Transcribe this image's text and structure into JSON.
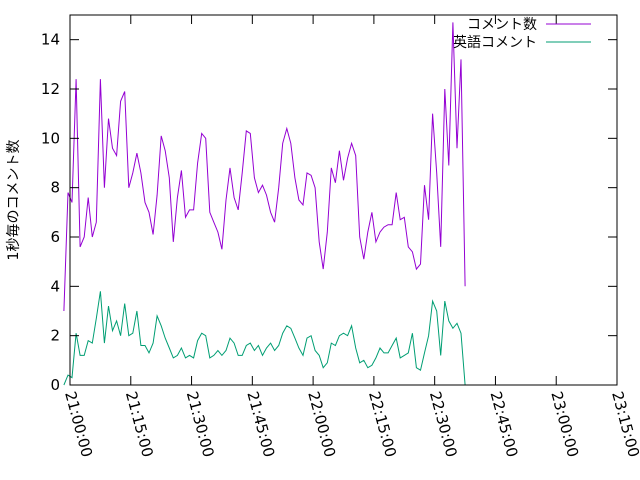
{
  "chart_data": {
    "type": "line",
    "ylabel": "1秒毎のコメント数",
    "xlabel": "",
    "ylim": [
      0,
      15
    ],
    "y_ticks": [
      0,
      2,
      4,
      6,
      8,
      10,
      12,
      14
    ],
    "y_tick_labels": [
      "0",
      "2",
      "4",
      "6",
      "8",
      "10",
      "12",
      "14"
    ],
    "x_tick_labels": [
      "21:00:00",
      "21:15:00",
      "21:30:00",
      "21:45:00",
      "22:00:00",
      "22:15:00",
      "22:30:00",
      "22:45:00",
      "23:00:00",
      "23:15:00"
    ],
    "xlim": [
      "21:00:00",
      "23:15:00"
    ],
    "grid": false,
    "legend_position": "top-right",
    "series": [
      {
        "name": "コメント数",
        "color": "#9400d3",
        "points": [
          [
            "20:58:30",
            3.0
          ],
          [
            "20:59:30",
            7.8
          ],
          [
            "21:00:30",
            7.4
          ],
          [
            "21:01:30",
            12.4
          ],
          [
            "21:02:30",
            5.6
          ],
          [
            "21:03:30",
            6.0
          ],
          [
            "21:04:30",
            7.6
          ],
          [
            "21:05:30",
            6.0
          ],
          [
            "21:06:30",
            6.6
          ],
          [
            "21:07:30",
            12.4
          ],
          [
            "21:08:30",
            8.0
          ],
          [
            "21:09:30",
            10.8
          ],
          [
            "21:10:30",
            9.6
          ],
          [
            "21:11:30",
            9.3
          ],
          [
            "21:12:30",
            11.5
          ],
          [
            "21:13:30",
            11.9
          ],
          [
            "21:14:30",
            8.0
          ],
          [
            "21:15:30",
            8.6
          ],
          [
            "21:16:30",
            9.4
          ],
          [
            "21:17:30",
            8.6
          ],
          [
            "21:18:30",
            7.4
          ],
          [
            "21:19:30",
            7.0
          ],
          [
            "21:20:30",
            6.1
          ],
          [
            "21:21:30",
            7.7
          ],
          [
            "21:22:30",
            10.1
          ],
          [
            "21:23:30",
            9.5
          ],
          [
            "21:24:30",
            8.4
          ],
          [
            "21:25:30",
            5.8
          ],
          [
            "21:26:30",
            7.6
          ],
          [
            "21:27:30",
            8.7
          ],
          [
            "21:28:30",
            6.8
          ],
          [
            "21:29:30",
            7.1
          ],
          [
            "21:30:30",
            7.1
          ],
          [
            "21:31:30",
            9.0
          ],
          [
            "21:32:30",
            10.2
          ],
          [
            "21:33:30",
            10.0
          ],
          [
            "21:34:30",
            7.0
          ],
          [
            "21:35:30",
            6.6
          ],
          [
            "21:36:30",
            6.2
          ],
          [
            "21:37:30",
            5.5
          ],
          [
            "21:38:30",
            7.5
          ],
          [
            "21:39:30",
            8.8
          ],
          [
            "21:40:30",
            7.6
          ],
          [
            "21:41:30",
            7.1
          ],
          [
            "21:42:30",
            8.6
          ],
          [
            "21:43:30",
            10.3
          ],
          [
            "21:44:30",
            10.2
          ],
          [
            "21:45:30",
            8.4
          ],
          [
            "21:46:30",
            7.8
          ],
          [
            "21:47:30",
            8.1
          ],
          [
            "21:48:30",
            7.7
          ],
          [
            "21:49:30",
            7.0
          ],
          [
            "21:50:30",
            6.6
          ],
          [
            "21:51:30",
            8.0
          ],
          [
            "21:52:30",
            9.8
          ],
          [
            "21:53:30",
            10.4
          ],
          [
            "21:54:30",
            9.8
          ],
          [
            "21:55:30",
            8.4
          ],
          [
            "21:56:30",
            7.5
          ],
          [
            "21:57:30",
            7.3
          ],
          [
            "21:58:30",
            8.6
          ],
          [
            "21:59:30",
            8.5
          ],
          [
            "22:00:30",
            8.0
          ],
          [
            "22:01:30",
            5.8
          ],
          [
            "22:02:30",
            4.7
          ],
          [
            "22:03:30",
            6.2
          ],
          [
            "22:04:30",
            8.8
          ],
          [
            "22:05:30",
            8.2
          ],
          [
            "22:06:30",
            9.5
          ],
          [
            "22:07:30",
            8.3
          ],
          [
            "22:08:30",
            9.2
          ],
          [
            "22:09:30",
            9.8
          ],
          [
            "22:10:30",
            9.3
          ],
          [
            "22:11:30",
            6.0
          ],
          [
            "22:12:30",
            5.1
          ],
          [
            "22:13:30",
            6.2
          ],
          [
            "22:14:30",
            7.0
          ],
          [
            "22:15:30",
            5.8
          ],
          [
            "22:16:30",
            6.2
          ],
          [
            "22:17:30",
            6.4
          ],
          [
            "22:18:30",
            6.5
          ],
          [
            "22:19:30",
            6.5
          ],
          [
            "22:20:30",
            7.8
          ],
          [
            "22:21:30",
            6.7
          ],
          [
            "22:22:30",
            6.8
          ],
          [
            "22:23:30",
            5.6
          ],
          [
            "22:24:30",
            5.4
          ],
          [
            "22:25:30",
            4.7
          ],
          [
            "22:26:30",
            4.9
          ],
          [
            "22:27:30",
            8.1
          ],
          [
            "22:28:30",
            6.7
          ],
          [
            "22:29:30",
            11.0
          ],
          [
            "22:30:30",
            8.6
          ],
          [
            "22:31:30",
            5.6
          ],
          [
            "22:32:30",
            12.0
          ],
          [
            "22:33:30",
            8.9
          ],
          [
            "22:34:30",
            14.7
          ],
          [
            "22:35:30",
            9.6
          ],
          [
            "22:36:30",
            13.2
          ],
          [
            "22:37:30",
            4.0
          ]
        ]
      },
      {
        "name": "英語コメント",
        "color": "#009e73",
        "points": [
          [
            "20:58:30",
            0.0
          ],
          [
            "20:59:30",
            0.4
          ],
          [
            "21:00:30",
            0.3
          ],
          [
            "21:01:30",
            2.1
          ],
          [
            "21:02:30",
            1.2
          ],
          [
            "21:03:30",
            1.2
          ],
          [
            "21:04:30",
            1.8
          ],
          [
            "21:05:30",
            1.7
          ],
          [
            "21:06:30",
            2.7
          ],
          [
            "21:07:30",
            3.8
          ],
          [
            "21:08:30",
            1.7
          ],
          [
            "21:09:30",
            3.2
          ],
          [
            "21:10:30",
            2.2
          ],
          [
            "21:11:30",
            2.6
          ],
          [
            "21:12:30",
            2.0
          ],
          [
            "21:13:30",
            3.3
          ],
          [
            "21:14:30",
            2.0
          ],
          [
            "21:15:30",
            2.1
          ],
          [
            "21:16:30",
            3.0
          ],
          [
            "21:17:30",
            1.6
          ],
          [
            "21:18:30",
            1.6
          ],
          [
            "21:19:30",
            1.3
          ],
          [
            "21:20:30",
            1.7
          ],
          [
            "21:21:30",
            2.8
          ],
          [
            "21:22:30",
            2.4
          ],
          [
            "21:23:30",
            1.9
          ],
          [
            "21:24:30",
            1.5
          ],
          [
            "21:25:30",
            1.1
          ],
          [
            "21:26:30",
            1.2
          ],
          [
            "21:27:30",
            1.5
          ],
          [
            "21:28:30",
            1.1
          ],
          [
            "21:29:30",
            1.2
          ],
          [
            "21:30:30",
            1.1
          ],
          [
            "21:31:30",
            1.8
          ],
          [
            "21:32:30",
            2.1
          ],
          [
            "21:33:30",
            2.0
          ],
          [
            "21:34:30",
            1.1
          ],
          [
            "21:35:30",
            1.2
          ],
          [
            "21:36:30",
            1.4
          ],
          [
            "21:37:30",
            1.2
          ],
          [
            "21:38:30",
            1.4
          ],
          [
            "21:39:30",
            1.9
          ],
          [
            "21:40:30",
            1.7
          ],
          [
            "21:41:30",
            1.2
          ],
          [
            "21:42:30",
            1.2
          ],
          [
            "21:43:30",
            1.6
          ],
          [
            "21:44:30",
            1.7
          ],
          [
            "21:45:30",
            1.4
          ],
          [
            "21:46:30",
            1.6
          ],
          [
            "21:47:30",
            1.2
          ],
          [
            "21:48:30",
            1.5
          ],
          [
            "21:49:30",
            1.7
          ],
          [
            "21:50:30",
            1.4
          ],
          [
            "21:51:30",
            1.6
          ],
          [
            "21:52:30",
            2.1
          ],
          [
            "21:53:30",
            2.4
          ],
          [
            "21:54:30",
            2.3
          ],
          [
            "21:55:30",
            1.9
          ],
          [
            "21:56:30",
            1.5
          ],
          [
            "21:57:30",
            1.2
          ],
          [
            "21:58:30",
            1.9
          ],
          [
            "21:59:30",
            2.0
          ],
          [
            "22:00:30",
            1.4
          ],
          [
            "22:01:30",
            1.2
          ],
          [
            "22:02:30",
            0.7
          ],
          [
            "22:03:30",
            0.9
          ],
          [
            "22:04:30",
            1.7
          ],
          [
            "22:05:30",
            1.6
          ],
          [
            "22:06:30",
            2.0
          ],
          [
            "22:07:30",
            2.1
          ],
          [
            "22:08:30",
            2.0
          ],
          [
            "22:09:30",
            2.4
          ],
          [
            "22:10:30",
            1.5
          ],
          [
            "22:11:30",
            0.9
          ],
          [
            "22:12:30",
            1.0
          ],
          [
            "22:13:30",
            0.7
          ],
          [
            "22:14:30",
            0.8
          ],
          [
            "22:15:30",
            1.1
          ],
          [
            "22:16:30",
            1.5
          ],
          [
            "22:17:30",
            1.3
          ],
          [
            "22:18:30",
            1.3
          ],
          [
            "22:19:30",
            1.6
          ],
          [
            "22:20:30",
            1.9
          ],
          [
            "22:21:30",
            1.1
          ],
          [
            "22:22:30",
            1.2
          ],
          [
            "22:23:30",
            1.3
          ],
          [
            "22:24:30",
            2.1
          ],
          [
            "22:25:30",
            0.7
          ],
          [
            "22:26:30",
            0.6
          ],
          [
            "22:27:30",
            1.3
          ],
          [
            "22:28:30",
            2.0
          ],
          [
            "22:29:30",
            3.4
          ],
          [
            "22:30:30",
            3.0
          ],
          [
            "22:31:30",
            1.2
          ],
          [
            "22:32:30",
            3.4
          ],
          [
            "22:33:30",
            2.6
          ],
          [
            "22:34:30",
            2.3
          ],
          [
            "22:35:30",
            2.5
          ],
          [
            "22:36:30",
            2.1
          ],
          [
            "22:37:30",
            0.0
          ]
        ]
      }
    ]
  }
}
